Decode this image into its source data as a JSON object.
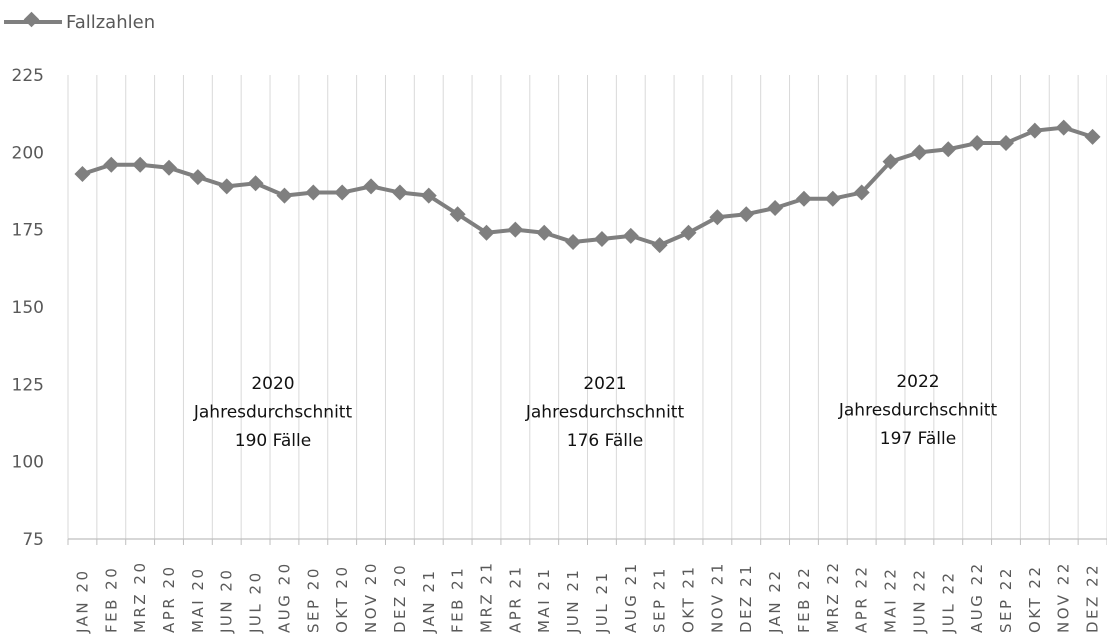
{
  "chart_data": {
    "type": "line",
    "legend_position": "top-left",
    "grid": "vertical",
    "line_color": "#7f7f7f",
    "ylim": [
      75,
      225
    ],
    "y_ticks": [
      "75",
      "100",
      "125",
      "150",
      "175",
      "200",
      "225"
    ],
    "categories": [
      "JAN 20",
      "FEB 20",
      "MRZ 20",
      "APR 20",
      "MAI 20",
      "JUN 20",
      "JUL 20",
      "AUG 20",
      "SEP 20",
      "OKT 20",
      "NOV 20",
      "DEZ 20",
      "JAN 21",
      "FEB 21",
      "MRZ 21",
      "APR 21",
      "MAI 21",
      "JUN 21",
      "JUL 21",
      "AUG 21",
      "SEP 21",
      "OKT 21",
      "NOV 21",
      "DEZ 21",
      "JAN 22",
      "FEB 22",
      "MRZ 22",
      "APR 22",
      "MAI 22",
      "JUN 22",
      "JUL 22",
      "AUG 22",
      "SEP 22",
      "OKT 22",
      "NOV 22",
      "DEZ 22"
    ],
    "series": [
      {
        "name": "Fallzahlen",
        "values": [
          193,
          196,
          196,
          195,
          192,
          189,
          190,
          186,
          187,
          187,
          189,
          187,
          186,
          180,
          174,
          175,
          174,
          171,
          172,
          173,
          170,
          174,
          179,
          180,
          182,
          185,
          185,
          187,
          197,
          200,
          201,
          203,
          203,
          207,
          208,
          205
        ]
      }
    ],
    "annotations": [
      {
        "lines": [
          "2020",
          "Jahresdurchschnitt",
          "190 Fälle"
        ]
      },
      {
        "lines": [
          "2021",
          "Jahresdurchschnitt",
          "176 Fälle"
        ]
      },
      {
        "lines": [
          "2022",
          "Jahresdurchschnitt",
          "197 Fälle"
        ]
      }
    ]
  }
}
